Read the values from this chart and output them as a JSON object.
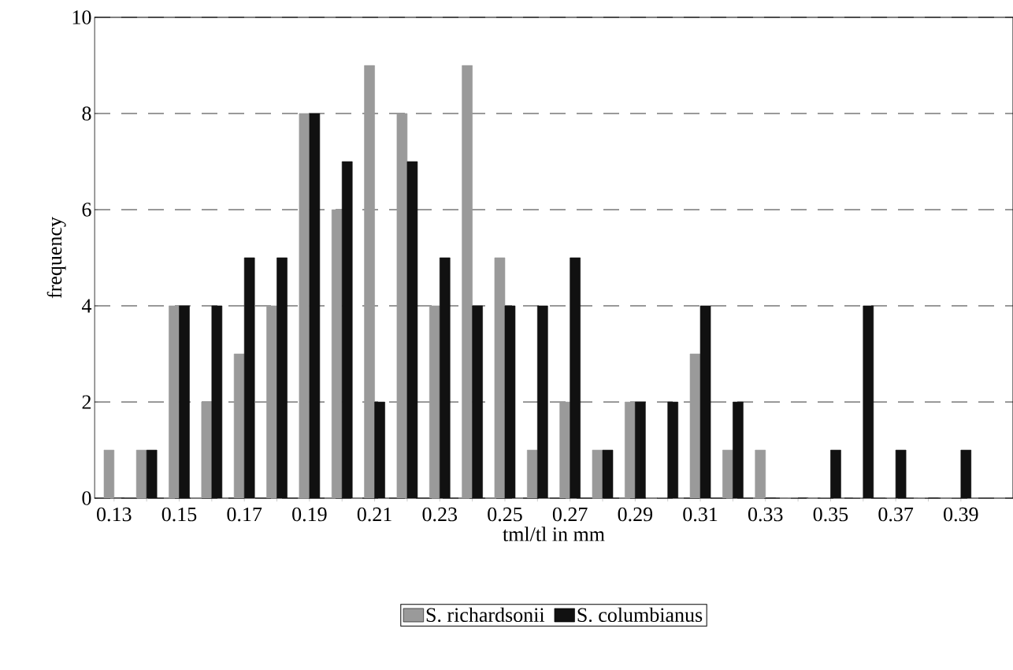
{
  "chart_data": {
    "type": "bar",
    "xlabel": "tml/tl in mm",
    "ylabel": "frequency",
    "categories": [
      "0.13",
      null,
      "0.15",
      null,
      "0.17",
      null,
      "0.19",
      null,
      "0.21",
      null,
      "0.23",
      null,
      "0.25",
      null,
      "0.27",
      null,
      "0.29",
      null,
      "0.31",
      null,
      "0.33",
      null,
      "0.35",
      null,
      "0.37",
      null,
      "0.39"
    ],
    "series": [
      {
        "name": "S. richardsonii",
        "color": "#9a9a9a",
        "values": [
          1,
          1,
          4,
          2,
          3,
          4,
          8,
          6,
          9,
          8,
          4,
          9,
          5,
          1,
          2,
          1,
          2,
          0,
          3,
          1,
          1,
          0,
          0,
          0,
          0,
          0,
          0
        ]
      },
      {
        "name": "S. columbianus",
        "color": "#111111",
        "values": [
          0,
          1,
          4,
          4,
          5,
          5,
          8,
          7,
          2,
          7,
          5,
          4,
          4,
          4,
          5,
          1,
          2,
          2,
          4,
          2,
          0,
          0,
          1,
          4,
          1,
          0,
          1
        ]
      }
    ],
    "ylim": [
      0,
      10
    ],
    "yticks": [
      0,
      2,
      4,
      6,
      8,
      10
    ],
    "grid": "y",
    "legend": "bottom"
  }
}
